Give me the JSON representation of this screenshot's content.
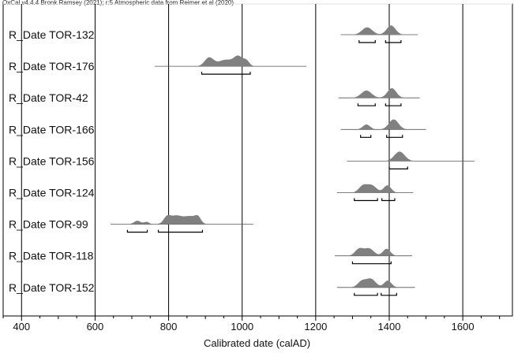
{
  "header": "OxCal v4.4.4 Bronk Ramsey (2021); r:5 Atmospheric data from Reimer et al (2020)",
  "chart_data": {
    "type": "oxcal-multiplot",
    "title": "",
    "xlabel": "Calibrated date (calAD)",
    "ylabel": "",
    "xlim": [
      350,
      1735
    ],
    "xticks": [
      400,
      600,
      800,
      1000,
      1200,
      1400,
      1600
    ],
    "vertical_gridlines": [
      400,
      600,
      800,
      1000,
      1200,
      1400,
      1600
    ],
    "colors": {
      "distribution": "#808080",
      "axis": "#000000",
      "frame_top": "#e0e0e0"
    },
    "samples": [
      {
        "label": "R_Date TOR-132",
        "range": [
          1268,
          1478
        ],
        "peaks": [
          {
            "center": 1340,
            "width": 14,
            "height": 0.62
          },
          {
            "center": 1405,
            "width": 12,
            "height": 0.78
          }
        ],
        "hpd_95": [
          [
            1318,
            1362
          ],
          [
            1390,
            1432
          ]
        ]
      },
      {
        "label": "R_Date TOR-176",
        "range": [
          762,
          1175
        ],
        "peaks": [
          {
            "center": 910,
            "width": 12,
            "height": 0.72
          },
          {
            "center": 955,
            "width": 20,
            "height": 0.55
          },
          {
            "center": 990,
            "width": 12,
            "height": 0.78
          },
          {
            "center": 1012,
            "width": 8,
            "height": 0.42
          }
        ],
        "hpd_95": [
          [
            890,
            1022
          ]
        ]
      },
      {
        "label": "R_Date TOR-42",
        "range": [
          1262,
          1483
        ],
        "peaks": [
          {
            "center": 1338,
            "width": 14,
            "height": 0.62
          },
          {
            "center": 1407,
            "width": 12,
            "height": 0.82
          }
        ],
        "hpd_95": [
          [
            1315,
            1362
          ],
          [
            1390,
            1432
          ]
        ]
      },
      {
        "label": "R_Date TOR-166",
        "range": [
          1268,
          1500
        ],
        "peaks": [
          {
            "center": 1338,
            "width": 10,
            "height": 0.42
          },
          {
            "center": 1412,
            "width": 13,
            "height": 0.85
          }
        ],
        "hpd_95": [
          [
            1322,
            1350
          ],
          [
            1393,
            1436
          ]
        ]
      },
      {
        "label": "R_Date TOR-156",
        "range": [
          1285,
          1632
        ],
        "peaks": [
          {
            "center": 1428,
            "width": 14,
            "height": 0.8
          }
        ],
        "hpd_95": [
          [
            1400,
            1450
          ]
        ]
      },
      {
        "label": "R_Date TOR-124",
        "range": [
          1258,
          1465
        ],
        "peaks": [
          {
            "center": 1328,
            "width": 11,
            "height": 0.55
          },
          {
            "center": 1352,
            "width": 13,
            "height": 0.62
          },
          {
            "center": 1395,
            "width": 10,
            "height": 0.62
          }
        ],
        "hpd_95": [
          [
            1305,
            1368
          ],
          [
            1380,
            1415
          ]
        ]
      },
      {
        "label": "R_Date TOR-99",
        "range": [
          642,
          1030
        ],
        "peaks": [
          {
            "center": 715,
            "width": 9,
            "height": 0.3
          },
          {
            "center": 740,
            "width": 7,
            "height": 0.2
          },
          {
            "center": 795,
            "width": 9,
            "height": 0.46
          },
          {
            "center": 820,
            "width": 18,
            "height": 0.72
          },
          {
            "center": 860,
            "width": 16,
            "height": 0.62
          },
          {
            "center": 880,
            "width": 8,
            "height": 0.45
          }
        ],
        "hpd_95": [
          [
            688,
            742
          ],
          [
            772,
            892
          ]
        ]
      },
      {
        "label": "R_Date TOR-118",
        "range": [
          1252,
          1462
        ],
        "peaks": [
          {
            "center": 1318,
            "width": 11,
            "height": 0.58
          },
          {
            "center": 1345,
            "width": 13,
            "height": 0.62
          },
          {
            "center": 1393,
            "width": 10,
            "height": 0.6
          }
        ],
        "hpd_95": [
          [
            1300,
            1405
          ]
        ]
      },
      {
        "label": "R_Date TOR-152",
        "range": [
          1258,
          1470
        ],
        "peaks": [
          {
            "center": 1325,
            "width": 11,
            "height": 0.5
          },
          {
            "center": 1350,
            "width": 13,
            "height": 0.72
          },
          {
            "center": 1396,
            "width": 10,
            "height": 0.58
          }
        ],
        "hpd_95": [
          [
            1305,
            1368
          ],
          [
            1378,
            1420
          ]
        ]
      }
    ]
  }
}
